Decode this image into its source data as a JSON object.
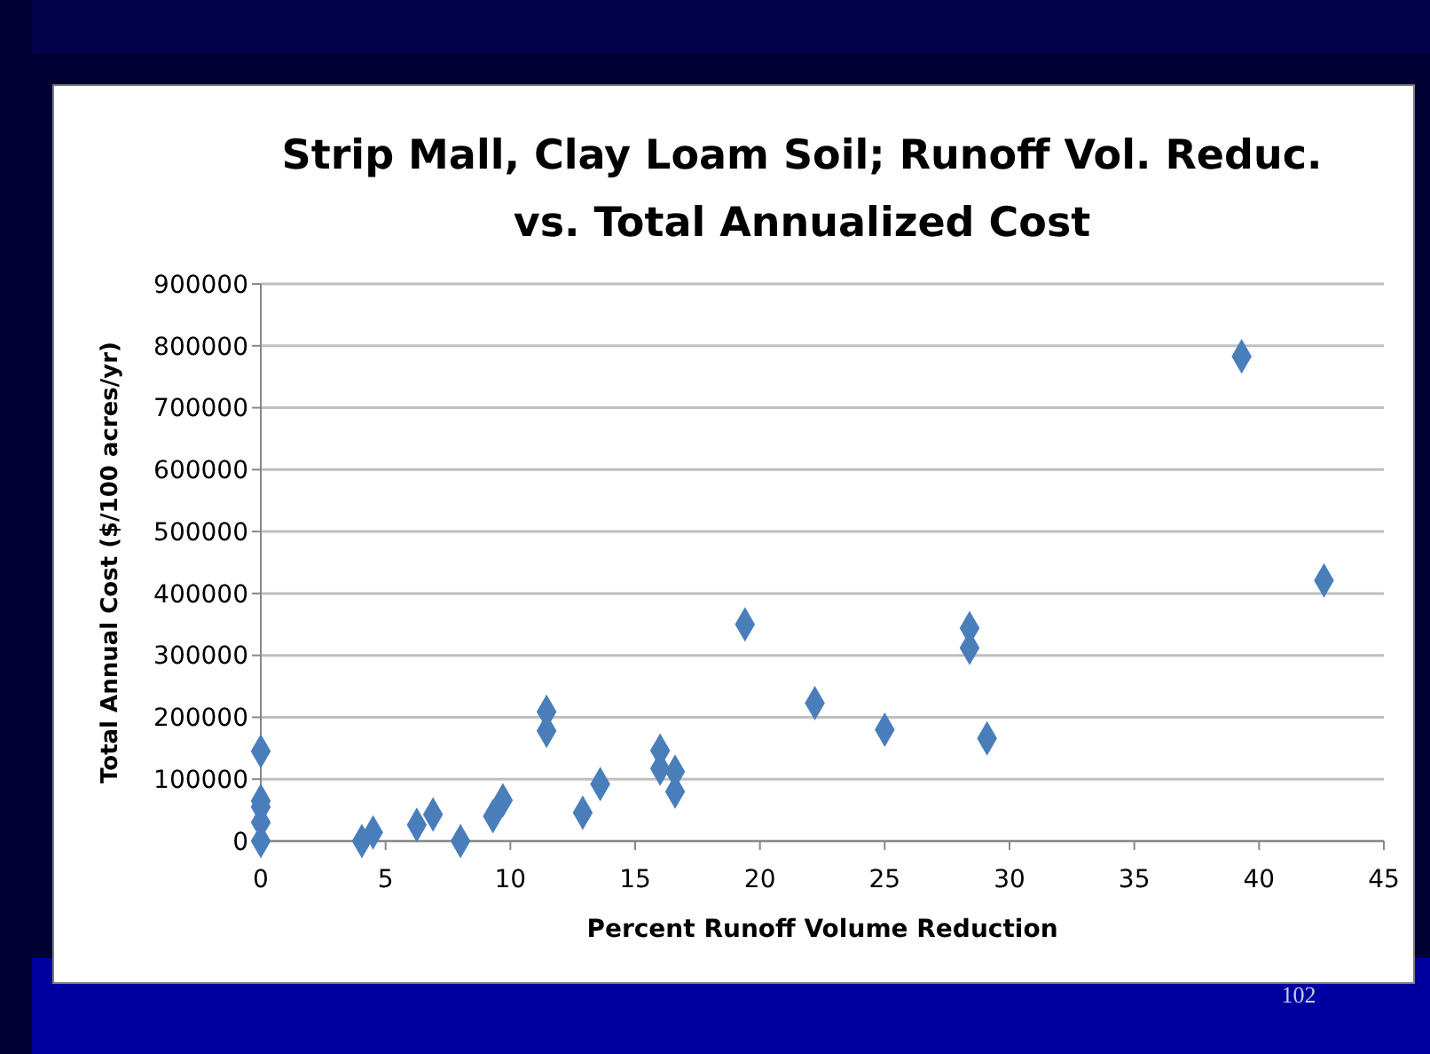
{
  "chart_data": {
    "type": "scatter",
    "title": "Strip Mall, Clay Loam Soil; Runoff Vol. Reduc. vs. Total Annualized Cost",
    "xlabel": "Percent Runoff Volume Reduction",
    "ylabel": "Total Annual Cost ($/100 acres/yr)",
    "xlim": [
      0,
      45
    ],
    "xticks": [
      0,
      5,
      10,
      15,
      20,
      25,
      30,
      35,
      40,
      45
    ],
    "ylim": [
      0,
      900000
    ],
    "yticks": [
      0,
      100000,
      200000,
      300000,
      400000,
      500000,
      600000,
      700000,
      800000,
      900000
    ],
    "grid": "y",
    "marker": "diamond",
    "series": [
      {
        "color": "#4a7ebb",
        "x": [
          0,
          0,
          0,
          0,
          0,
          4.05,
          4.5,
          6.25,
          6.9,
          8,
          9.3,
          9.7,
          11.45,
          11.45,
          12.9,
          13.6,
          16,
          16,
          16.6,
          16.6,
          19.4,
          22.2,
          25,
          28.4,
          28.4,
          29.1,
          39.3,
          42.6
        ],
        "values": [
          145000,
          65000,
          55000,
          30000,
          0,
          0,
          14000,
          26000,
          43000,
          0,
          40000,
          66000,
          209000,
          178000,
          46000,
          92000,
          146000,
          117000,
          112000,
          80000,
          350000,
          223000,
          180000,
          344000,
          312000,
          166000,
          783000,
          421000
        ]
      }
    ],
    "annotations": [
      "102"
    ]
  }
}
